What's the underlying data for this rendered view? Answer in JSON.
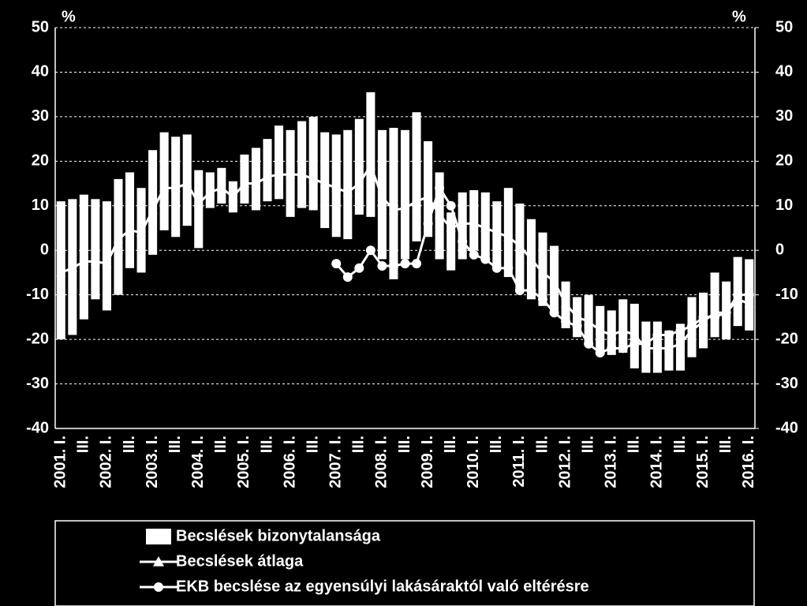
{
  "chart_data": {
    "type": "floating-bar-line",
    "y_unit": "%",
    "y2_unit": "%",
    "categories": [
      "2001. I.",
      null,
      "III.",
      null,
      "2002. I.",
      null,
      "III.",
      null,
      "2003. I.",
      null,
      "III.",
      null,
      "2004. I.",
      null,
      "III.",
      null,
      "2005. I.",
      null,
      "III.",
      null,
      "2006. I.",
      null,
      "III.",
      null,
      "2007. I.",
      null,
      "III.",
      null,
      "2008. I.",
      null,
      "III.",
      null,
      "2009. I.",
      null,
      "III.",
      null,
      "2010. I.",
      null,
      "III.",
      null,
      "2011. I.",
      null,
      "III.",
      null,
      "2012. I.",
      null,
      "III.",
      null,
      "2013. I.",
      null,
      "III.",
      null,
      "2014. I.",
      null,
      "III.",
      null,
      "2015. I.",
      null,
      "III.",
      null,
      "2016. I."
    ],
    "series": [
      {
        "name": "Becslések bizonytalansága",
        "kind": "range",
        "color": "#ffffff",
        "values": [
          [
            -20,
            11
          ],
          [
            -19,
            11.5
          ],
          [
            -15.5,
            12.5
          ],
          [
            -11,
            11.5
          ],
          [
            -13.5,
            11
          ],
          [
            -10,
            16
          ],
          [
            -4,
            17.5
          ],
          [
            -5,
            14
          ],
          [
            -1,
            22.5
          ],
          [
            4.5,
            26.5
          ],
          [
            3,
            25.5
          ],
          [
            5.5,
            26
          ],
          [
            0.5,
            18
          ],
          [
            9.5,
            17.5
          ],
          [
            10.5,
            18.5
          ],
          [
            8.5,
            15.5
          ],
          [
            10.5,
            21.5
          ],
          [
            9,
            23
          ],
          [
            11,
            25
          ],
          [
            11.5,
            28
          ],
          [
            7.5,
            27
          ],
          [
            9.5,
            29
          ],
          [
            9,
            30
          ],
          [
            5,
            26.5
          ],
          [
            3,
            26
          ],
          [
            2.5,
            27
          ],
          [
            8,
            29.5
          ],
          [
            7.5,
            35.5
          ],
          [
            -2,
            27
          ],
          [
            -6.5,
            27.5
          ],
          [
            -2,
            27
          ],
          [
            2,
            31
          ],
          [
            3,
            24.5
          ],
          [
            -2,
            17.5
          ],
          [
            -4.5,
            8.5
          ],
          [
            -2,
            13
          ],
          [
            0,
            13.5
          ],
          [
            -1.5,
            13
          ],
          [
            -4,
            11
          ],
          [
            -6,
            14
          ],
          [
            -9,
            10.5
          ],
          [
            -11,
            7
          ],
          [
            -12.5,
            4
          ],
          [
            -14,
            1
          ],
          [
            -17.5,
            -7
          ],
          [
            -19.5,
            -10.5
          ],
          [
            -21,
            -10
          ],
          [
            -23.5,
            -12.5
          ],
          [
            -23.5,
            -13.5
          ],
          [
            -23,
            -11
          ],
          [
            -26.5,
            -12
          ],
          [
            -27.5,
            -16
          ],
          [
            -27.5,
            -16
          ],
          [
            -27,
            -18
          ],
          [
            -27,
            -16.5
          ],
          [
            -24,
            -10.5
          ],
          [
            -22,
            -9.5
          ],
          [
            -19.5,
            -5
          ],
          [
            -20,
            -7
          ],
          [
            -17,
            -1.5
          ],
          [
            -18,
            -2
          ]
        ]
      },
      {
        "name": "Becslések átlaga",
        "kind": "line",
        "marker": "triangle",
        "color": "#ffffff",
        "values": [
          -5,
          -4,
          -2.5,
          -2.5,
          -3,
          2.5,
          4.5,
          4,
          9,
          14,
          14,
          15,
          10.5,
          13,
          14,
          12,
          15,
          15,
          16.5,
          17,
          17,
          17,
          16,
          15,
          14,
          13,
          15,
          19,
          12,
          9,
          9.5,
          11,
          12,
          8,
          5,
          6,
          6,
          5,
          4,
          3,
          1,
          -2,
          -5,
          -7,
          -12,
          -15,
          -16,
          -18,
          -19,
          -18,
          -19,
          -22,
          -22,
          -22,
          -21,
          -18,
          -16,
          -14,
          -14,
          -11,
          -12
        ]
      },
      {
        "name": "EKB becslése az egyensúlyi lakásáraktól való eltérésre",
        "kind": "line",
        "marker": "circle",
        "color": "#ffffff",
        "values": [
          null,
          null,
          null,
          null,
          null,
          null,
          null,
          null,
          null,
          null,
          null,
          null,
          null,
          null,
          null,
          null,
          null,
          null,
          null,
          null,
          null,
          null,
          null,
          null,
          -3,
          -6,
          -4,
          0,
          -3.5,
          -3.5,
          -3,
          -3,
          6,
          14,
          10,
          2,
          -1,
          -2,
          -4,
          -4,
          -9,
          -9,
          -11,
          -14,
          -16,
          -17,
          -21,
          -23,
          -22,
          -22,
          -21,
          -21,
          -19,
          -19,
          -18,
          -17,
          -15,
          -15,
          -14,
          -10,
          -10
        ]
      }
    ],
    "ylim": [
      -40,
      50
    ],
    "yticks": [
      -40,
      -30,
      -20,
      -10,
      0,
      10,
      20,
      30,
      40,
      50
    ],
    "y2lim": [
      -40,
      50
    ],
    "y2ticks": [
      -40,
      -30,
      -20,
      -10,
      0,
      10,
      20,
      30,
      40,
      50
    ],
    "grid": true
  }
}
